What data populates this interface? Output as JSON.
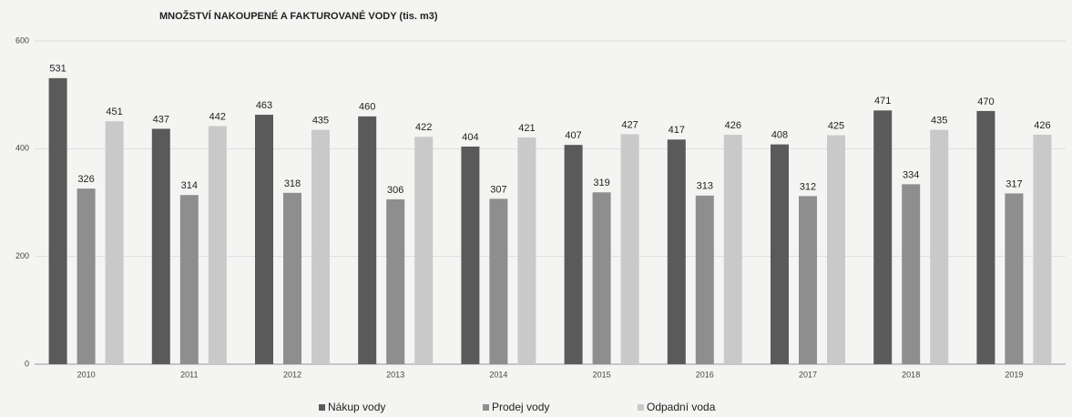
{
  "chart_data": {
    "type": "bar",
    "title": "MNOŽSTVÍ NAKOUPENÉ A FAKTUROVANÉ VODY (tis. m3)",
    "categories": [
      "2010",
      "2011",
      "2012",
      "2013",
      "2014",
      "2015",
      "2016",
      "2017",
      "2018",
      "2019"
    ],
    "series": [
      {
        "name": "Nákup vody",
        "color": "#5a5a5a",
        "values": [
          531,
          437,
          463,
          460,
          404,
          407,
          417,
          408,
          471,
          470
        ]
      },
      {
        "name": "Prodej vody",
        "color": "#8e8e8e",
        "values": [
          326,
          314,
          318,
          306,
          307,
          319,
          313,
          312,
          334,
          317
        ]
      },
      {
        "name": "Odpadní voda",
        "color": "#c9c9c9",
        "values": [
          451,
          442,
          435,
          422,
          421,
          427,
          426,
          425,
          435,
          426
        ]
      }
    ],
    "ylim": [
      0,
      600
    ],
    "yticks": [
      0,
      200,
      400,
      600
    ],
    "grid": true,
    "legend": "bottom"
  }
}
